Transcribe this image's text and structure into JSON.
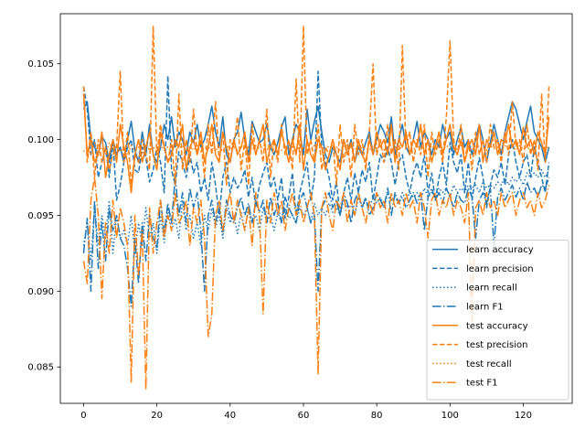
{
  "chart_data": {
    "type": "line",
    "title": "",
    "xlabel": "",
    "ylabel": "",
    "xlim": [
      -6.35,
      133.35
    ],
    "ylim": [
      0.0826,
      0.1083
    ],
    "xticks": [
      0,
      20,
      40,
      60,
      80,
      100,
      120
    ],
    "xtick_labels": [
      "0",
      "20",
      "40",
      "60",
      "80",
      "100",
      "120"
    ],
    "yticks": [
      0.085,
      0.09,
      0.095,
      0.1,
      0.105
    ],
    "ytick_labels": [
      "0.085",
      "0.090",
      "0.095",
      "0.100",
      "0.105"
    ],
    "legend_position": "lower-right",
    "grid": false,
    "x_count": 128,
    "series": [
      {
        "name": "learn accuracy",
        "color": "#1f77b4",
        "dash": "solid",
        "values": [
          0.102,
          0.1025,
          0.1,
          0.0995,
          0.099,
          0.1002,
          0.0998,
          0.0985,
          0.1,
          0.099,
          0.0995,
          0.0985,
          0.1,
          0.1012,
          0.0993,
          0.0985,
          0.1005,
          0.099,
          0.101,
          0.099,
          0.0985,
          0.0995,
          0.101,
          0.1,
          0.1015,
          0.0995,
          0.1005,
          0.1,
          0.099,
          0.1005,
          0.0998,
          0.101,
          0.0995,
          0.1,
          0.101,
          0.1022,
          0.1005,
          0.0995,
          0.1015,
          0.099,
          0.0985,
          0.1,
          0.1005,
          0.1018,
          0.1,
          0.099,
          0.1012,
          0.1005,
          0.0998,
          0.1,
          0.101,
          0.0995,
          0.099,
          0.0998,
          0.1008,
          0.1015,
          0.099,
          0.1,
          0.101,
          0.1005,
          0.099,
          0.102,
          0.1,
          0.1012,
          0.1022,
          0.1005,
          0.099,
          0.0985,
          0.0995,
          0.099,
          0.0985,
          0.1,
          0.099,
          0.1,
          0.0985,
          0.0995,
          0.099,
          0.0998,
          0.1005,
          0.099,
          0.1,
          0.101,
          0.1005,
          0.0998,
          0.1015,
          0.099,
          0.1,
          0.101,
          0.0995,
          0.099,
          0.1,
          0.1012,
          0.0995,
          0.1005,
          0.1,
          0.099,
          0.1,
          0.0995,
          0.101,
          0.1,
          0.1005,
          0.099,
          0.1,
          0.1008,
          0.0995,
          0.1,
          0.099,
          0.1,
          0.101,
          0.1,
          0.0985,
          0.0998,
          0.101,
          0.1,
          0.099,
          0.1005,
          0.1015,
          0.1025,
          0.102,
          0.101,
          0.1,
          0.1012,
          0.1022,
          0.1005,
          0.1,
          0.0995,
          0.0985,
          0.0995
        ]
      },
      {
        "name": "learn precision",
        "color": "#1f77b4",
        "dash": "dashed",
        "values": [
          0.1035,
          0.102,
          0.099,
          0.1,
          0.0975,
          0.0985,
          0.0995,
          0.0975,
          0.1,
          0.096,
          0.097,
          0.0985,
          0.0995,
          0.1,
          0.098,
          0.0978,
          0.0995,
          0.0988,
          0.0972,
          0.098,
          0.0995,
          0.0985,
          0.0965,
          0.1042,
          0.098,
          0.097,
          0.0992,
          0.0985,
          0.0975,
          0.099,
          0.0978,
          0.0985,
          0.0965,
          0.0975,
          0.096,
          0.0985,
          0.097,
          0.095,
          0.0975,
          0.0985,
          0.0965,
          0.0975,
          0.0968,
          0.0972,
          0.098,
          0.0962,
          0.0975,
          0.0955,
          0.097,
          0.0978,
          0.0985,
          0.0968,
          0.0975,
          0.096,
          0.0975,
          0.0948,
          0.0962,
          0.0978,
          0.095,
          0.0965,
          0.0975,
          0.0985,
          0.096,
          0.0975,
          0.1045,
          0.0995,
          0.0985,
          0.0975,
          0.096,
          0.0972,
          0.095,
          0.0965,
          0.0975,
          0.096,
          0.0978,
          0.0965,
          0.098,
          0.0972,
          0.0985,
          0.096,
          0.0975,
          0.099,
          0.0985,
          0.0995,
          0.0985,
          0.097,
          0.0985,
          0.099,
          0.0975,
          0.0965,
          0.0978,
          0.0985,
          0.0975,
          0.099,
          0.0965,
          0.0978,
          0.096,
          0.0975,
          0.0985,
          0.097,
          0.0998,
          0.0985,
          0.0978,
          0.099,
          0.0965,
          0.0985,
          0.096,
          0.0975,
          0.0988,
          0.0975,
          0.0955,
          0.097,
          0.098,
          0.0975,
          0.0985,
          0.097,
          0.099,
          0.1,
          0.0985,
          0.0975,
          0.0985,
          0.099,
          0.0975,
          0.0995,
          0.0985,
          0.0975,
          0.0965,
          0.0985
        ]
      },
      {
        "name": "learn recall",
        "color": "#1f77b4",
        "dash": "dotted",
        "values": [
          0.093,
          0.0945,
          0.092,
          0.0955,
          0.093,
          0.095,
          0.0935,
          0.096,
          0.0925,
          0.095,
          0.0935,
          0.094,
          0.093,
          0.095,
          0.0925,
          0.0945,
          0.093,
          0.0955,
          0.0935,
          0.0945,
          0.0925,
          0.095,
          0.0932,
          0.0955,
          0.094,
          0.0948,
          0.0935,
          0.096,
          0.094,
          0.095,
          0.0935,
          0.0945,
          0.093,
          0.095,
          0.094,
          0.0955,
          0.0942,
          0.095,
          0.0935,
          0.0955,
          0.0945,
          0.095,
          0.0938,
          0.0952,
          0.094,
          0.0955,
          0.0945,
          0.095,
          0.094,
          0.0955,
          0.0945,
          0.095,
          0.094,
          0.0952,
          0.0945,
          0.0955,
          0.0948,
          0.095,
          0.0945,
          0.0955,
          0.095,
          0.0955,
          0.0945,
          0.0958,
          0.095,
          0.0955,
          0.095,
          0.0958,
          0.0952,
          0.0955,
          0.095,
          0.096,
          0.0955,
          0.0958,
          0.095,
          0.0962,
          0.0955,
          0.096,
          0.0955,
          0.0962,
          0.0958,
          0.0962,
          0.0955,
          0.0965,
          0.096,
          0.0962,
          0.0958,
          0.0965,
          0.096,
          0.0965,
          0.0962,
          0.0965,
          0.096,
          0.0968,
          0.0962,
          0.0965,
          0.0962,
          0.0968,
          0.0965,
          0.0968,
          0.0962,
          0.097,
          0.0965,
          0.0968,
          0.0965,
          0.097,
          0.0968,
          0.097,
          0.0965,
          0.0972,
          0.0968,
          0.097,
          0.0968,
          0.0972,
          0.097,
          0.0975,
          0.097,
          0.0975,
          0.0972,
          0.0975,
          0.097,
          0.0978,
          0.0975,
          0.0978,
          0.0975,
          0.098,
          0.0975,
          0.098
        ]
      },
      {
        "name": "learn F1",
        "color": "#1f77b4",
        "dash": "dashdot",
        "values": [
          0.0925,
          0.0948,
          0.09,
          0.096,
          0.0915,
          0.0945,
          0.092,
          0.0955,
          0.094,
          0.095,
          0.0935,
          0.093,
          0.0915,
          0.089,
          0.0935,
          0.0905,
          0.0945,
          0.092,
          0.095,
          0.0935,
          0.0928,
          0.096,
          0.0938,
          0.0958,
          0.0945,
          0.0975,
          0.095,
          0.0965,
          0.0945,
          0.0968,
          0.0955,
          0.0965,
          0.094,
          0.09,
          0.095,
          0.096,
          0.0945,
          0.0955,
          0.0938,
          0.096,
          0.095,
          0.0945,
          0.0955,
          0.0962,
          0.095,
          0.0958,
          0.0945,
          0.096,
          0.0952,
          0.096,
          0.0945,
          0.0962,
          0.095,
          0.0958,
          0.0945,
          0.0962,
          0.0955,
          0.095,
          0.0945,
          0.096,
          0.0965,
          0.0955,
          0.0945,
          0.095,
          0.09,
          0.0955,
          0.096,
          0.0965,
          0.0955,
          0.096,
          0.095,
          0.0965,
          0.0958,
          0.0945,
          0.096,
          0.0965,
          0.0955,
          0.0962,
          0.095,
          0.0955,
          0.0965,
          0.096,
          0.0955,
          0.0968,
          0.095,
          0.0965,
          0.0958,
          0.0962,
          0.0955,
          0.096,
          0.0965,
          0.0958,
          0.0965,
          0.094,
          0.0962,
          0.0968,
          0.096,
          0.0965,
          0.0958,
          0.0968,
          0.0962,
          0.0955,
          0.0965,
          0.096,
          0.0958,
          0.0968,
          0.0962,
          0.0935,
          0.096,
          0.0965,
          0.0958,
          0.0968,
          0.093,
          0.0962,
          0.0968,
          0.096,
          0.0965,
          0.097,
          0.0962,
          0.0968,
          0.096,
          0.0972,
          0.0965,
          0.0968,
          0.0962,
          0.097,
          0.0968,
          0.0975
        ]
      },
      {
        "name": "test accuracy",
        "color": "#ff7f0e",
        "dash": "solid",
        "values": [
          0.103,
          0.099,
          0.1,
          0.0985,
          0.099,
          0.1005,
          0.0975,
          0.099,
          0.1,
          0.0985,
          0.101,
          0.0995,
          0.0985,
          0.0965,
          0.099,
          0.1,
          0.0985,
          0.0995,
          0.1005,
          0.099,
          0.098,
          0.1005,
          0.0995,
          0.0985,
          0.099,
          0.1,
          0.0995,
          0.101,
          0.098,
          0.0995,
          0.1,
          0.099,
          0.1005,
          0.0985,
          0.0995,
          0.101,
          0.099,
          0.0985,
          0.1005,
          0.0995,
          0.0985,
          0.1,
          0.099,
          0.0995,
          0.1005,
          0.0985,
          0.1,
          0.099,
          0.1,
          0.101,
          0.0985,
          0.0995,
          0.1,
          0.099,
          0.1005,
          0.0995,
          0.0985,
          0.1,
          0.099,
          0.101,
          0.098,
          0.1,
          0.099,
          0.0985,
          0.1,
          0.0995,
          0.098,
          0.099,
          0.1,
          0.099,
          0.098,
          0.1,
          0.099,
          0.0998,
          0.0985,
          0.1,
          0.099,
          0.0985,
          0.1,
          0.099,
          0.1005,
          0.0995,
          0.1,
          0.099,
          0.101,
          0.0985,
          0.1,
          0.0995,
          0.1005,
          0.099,
          0.1,
          0.0995,
          0.101,
          0.099,
          0.1,
          0.0985,
          0.0995,
          0.1005,
          0.099,
          0.1,
          0.101,
          0.0995,
          0.099,
          0.1,
          0.0985,
          0.0995,
          0.1,
          0.099,
          0.101,
          0.0985,
          0.1,
          0.0995,
          0.1005,
          0.099,
          0.1,
          0.0998,
          0.101,
          0.0995,
          0.1,
          0.099,
          0.1008,
          0.0995,
          0.1,
          0.099,
          0.1005,
          0.0998,
          0.099,
          0.1015
        ]
      },
      {
        "name": "test precision",
        "color": "#ff7f0e",
        "dash": "dashed",
        "values": [
          0.1035,
          0.0985,
          0.1005,
          0.0975,
          0.1,
          0.0985,
          0.0995,
          0.098,
          0.099,
          0.0995,
          0.1045,
          0.0985,
          0.1005,
          0.097,
          0.099,
          0.0985,
          0.1,
          0.099,
          0.098,
          0.1075,
          0.099,
          0.101,
          0.0995,
          0.0985,
          0.1,
          0.097,
          0.103,
          0.098,
          0.1,
          0.0985,
          0.102,
          0.099,
          0.1,
          0.0975,
          0.101,
          0.099,
          0.1025,
          0.0985,
          0.1005,
          0.097,
          0.1,
          0.0995,
          0.1015,
          0.098,
          0.1,
          0.097,
          0.101,
          0.099,
          0.1,
          0.0985,
          0.102,
          0.0975,
          0.1,
          0.0985,
          0.101,
          0.099,
          0.1,
          0.098,
          0.104,
          0.0985,
          0.1075,
          0.099,
          0.1,
          0.0985,
          0.101,
          0.098,
          0.0995,
          0.099,
          0.1,
          0.097,
          0.101,
          0.0985,
          0.1,
          0.0975,
          0.101,
          0.099,
          0.1,
          0.098,
          0.1005,
          0.105,
          0.099,
          0.1,
          0.0985,
          0.101,
          0.099,
          0.1,
          0.098,
          0.1062,
          0.0995,
          0.1005,
          0.0985,
          0.1,
          0.099,
          0.101,
          0.0975,
          0.1005,
          0.099,
          0.1,
          0.0985,
          0.1015,
          0.1065,
          0.1,
          0.099,
          0.101,
          0.0985,
          0.1,
          0.098,
          0.1005,
          0.099,
          0.1,
          0.0985,
          0.101,
          0.0995,
          0.1,
          0.0985,
          0.1005,
          0.099,
          0.1025,
          0.0995,
          0.1,
          0.0985,
          0.101,
          0.099,
          0.1,
          0.098,
          0.103,
          0.0985,
          0.1035
        ]
      },
      {
        "name": "test recall",
        "color": "#ff7f0e",
        "dash": "dotted",
        "values": [
          0.0992,
          0.0995,
          0.099,
          0.0998,
          0.0992,
          0.0995,
          0.099,
          0.0998,
          0.0994,
          0.0996,
          0.0992,
          0.0995,
          0.099,
          0.0996,
          0.0993,
          0.0995,
          0.0991,
          0.0997,
          0.0993,
          0.0995,
          0.0992,
          0.0996,
          0.0993,
          0.0995,
          0.0991,
          0.0997,
          0.0994,
          0.0996,
          0.0992,
          0.0995,
          0.0993,
          0.0996,
          0.0992,
          0.0995,
          0.0994,
          0.0996,
          0.0993,
          0.0995,
          0.0992,
          0.0996,
          0.0994,
          0.0995,
          0.0993,
          0.0996,
          0.0994,
          0.0995,
          0.0993,
          0.0996,
          0.0994,
          0.0995,
          0.0993,
          0.0996,
          0.0994,
          0.0995,
          0.0993,
          0.0996,
          0.0994,
          0.0995,
          0.0993,
          0.0996,
          0.0994,
          0.0995,
          0.0993,
          0.0996,
          0.0994,
          0.0995,
          0.0993,
          0.0996,
          0.0994,
          0.0995,
          0.0993,
          0.0996,
          0.0994,
          0.0995,
          0.0993,
          0.0996,
          0.0994,
          0.0995,
          0.0993,
          0.0996,
          0.0994,
          0.0995,
          0.0993,
          0.0996,
          0.0994,
          0.0995,
          0.0993,
          0.0996,
          0.0994,
          0.0995,
          0.0993,
          0.0996,
          0.0994,
          0.0995,
          0.0993,
          0.0996,
          0.0994,
          0.0995,
          0.0993,
          0.0996,
          0.0994,
          0.0995,
          0.0993,
          0.0996,
          0.0994,
          0.0995,
          0.0993,
          0.0996,
          0.0994,
          0.0995,
          0.0993,
          0.0996,
          0.0994,
          0.0995,
          0.0993,
          0.0996,
          0.0994,
          0.0995,
          0.0993,
          0.0996,
          0.0994,
          0.0995,
          0.0993,
          0.0996,
          0.0994,
          0.0995,
          0.0993,
          0.0996
        ]
      },
      {
        "name": "test F1",
        "color": "#ff7f0e",
        "dash": "dashdot",
        "values": [
          0.092,
          0.0905,
          0.096,
          0.0975,
          0.095,
          0.0895,
          0.0945,
          0.0925,
          0.096,
          0.0935,
          0.0955,
          0.0945,
          0.093,
          0.084,
          0.095,
          0.091,
          0.094,
          0.0835,
          0.0955,
          0.0925,
          0.0945,
          0.096,
          0.0935,
          0.095,
          0.094,
          0.0965,
          0.0945,
          0.095,
          0.096,
          0.093,
          0.0955,
          0.0945,
          0.096,
          0.0935,
          0.087,
          0.0885,
          0.095,
          0.096,
          0.094,
          0.0955,
          0.0965,
          0.0945,
          0.096,
          0.095,
          0.094,
          0.0955,
          0.093,
          0.0965,
          0.095,
          0.0885,
          0.096,
          0.0945,
          0.0965,
          0.095,
          0.096,
          0.094,
          0.0955,
          0.0965,
          0.095,
          0.096,
          0.0945,
          0.0955,
          0.0965,
          0.095,
          0.0845,
          0.0955,
          0.0965,
          0.095,
          0.094,
          0.096,
          0.0955,
          0.0965,
          0.0945,
          0.096,
          0.095,
          0.0965,
          0.0955,
          0.0945,
          0.096,
          0.095,
          0.0965,
          0.0955,
          0.096,
          0.0945,
          0.0965,
          0.0955,
          0.096,
          0.095,
          0.0965,
          0.0955,
          0.096,
          0.0945,
          0.0965,
          0.0955,
          0.0935,
          0.096,
          0.0965,
          0.095,
          0.096,
          0.0955,
          0.0965,
          0.095,
          0.096,
          0.0955,
          0.0945,
          0.0965,
          0.088,
          0.0955,
          0.096,
          0.095,
          0.0965,
          0.0955,
          0.096,
          0.095,
          0.0965,
          0.0955,
          0.096,
          0.0965,
          0.095,
          0.096,
          0.0965,
          0.0955,
          0.096,
          0.095,
          0.0965,
          0.0955,
          0.096,
          0.097
        ]
      }
    ]
  }
}
